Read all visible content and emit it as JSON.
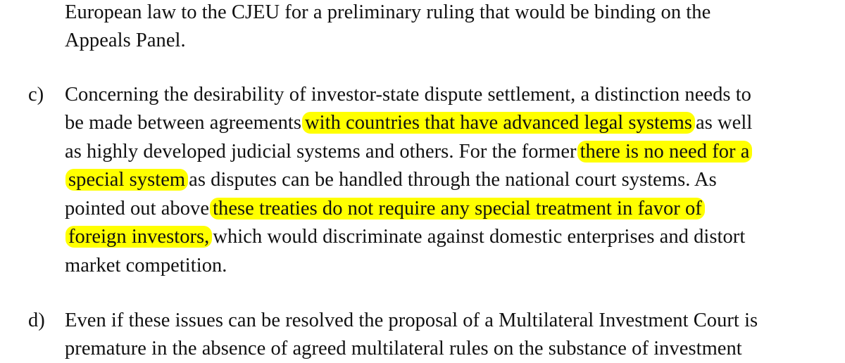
{
  "document": {
    "intro": {
      "lines": [
        "European law to the CJEU for a preliminary ruling that would be binding on the",
        "Appeals Panel."
      ]
    },
    "item_c": {
      "marker": "c)",
      "line1": "Concerning the desirability of investor-state dispute settlement, a distinction needs to",
      "line2_a": "be made between agreements",
      "line2_hl": "with countries that have advanced legal systems",
      "line2_b": "as well",
      "line3_a": "as highly developed judicial systems and others. For the former",
      "line3_hl": "there is no need for a",
      "line4_hl": "special system",
      "line4_b": "as disputes can be handled through the national court systems. As",
      "line5_a": "pointed out above",
      "line5_hl": "these treaties do not require any special treatment in favor of",
      "line6_hl": "foreign investors,",
      "line6_b": "which would discriminate against domestic enterprises and distort",
      "line7": "market competition."
    },
    "item_d": {
      "marker": "d)",
      "line1": "Even if these issues can be resolved the proposal of a Multilateral Investment Court is",
      "line2": "premature in the absence of agreed multilateral rules on the substance of investment"
    },
    "highlight_color": "#ffff00",
    "text_color": "#111111"
  }
}
